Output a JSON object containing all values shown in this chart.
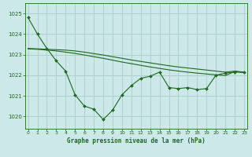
{
  "title": "Graphe pression niveau de la mer (hPa)",
  "bg_color": "#cce8e8",
  "grid_color": "#aacccc",
  "line_color": "#1a6b1a",
  "x_ticks": [
    0,
    1,
    2,
    3,
    4,
    5,
    6,
    7,
    8,
    9,
    10,
    11,
    12,
    13,
    14,
    15,
    16,
    17,
    18,
    19,
    20,
    21,
    22,
    23
  ],
  "y_ticks": [
    1020,
    1021,
    1022,
    1023,
    1024,
    1025
  ],
  "ylim": [
    1019.4,
    1025.5
  ],
  "xlim": [
    -0.3,
    23.3
  ],
  "series1": [
    1024.8,
    1024.0,
    1023.3,
    1022.7,
    1022.2,
    1021.05,
    1020.5,
    1020.35,
    1019.85,
    1020.3,
    1021.05,
    1021.5,
    1021.85,
    1021.95,
    1022.15,
    1021.4,
    1021.35,
    1021.4,
    1021.3,
    1021.35,
    1022.0,
    1022.1,
    1022.15,
    1022.15
  ],
  "series2": [
    1023.3,
    1023.28,
    1023.26,
    1023.24,
    1023.22,
    1023.18,
    1023.12,
    1023.05,
    1022.98,
    1022.9,
    1022.82,
    1022.74,
    1022.67,
    1022.6,
    1022.53,
    1022.46,
    1022.4,
    1022.35,
    1022.3,
    1022.25,
    1022.2,
    1022.15,
    1022.2,
    1022.15
  ],
  "series3": [
    1023.28,
    1023.26,
    1023.22,
    1023.18,
    1023.12,
    1023.06,
    1022.98,
    1022.9,
    1022.82,
    1022.73,
    1022.64,
    1022.56,
    1022.48,
    1022.4,
    1022.33,
    1022.26,
    1022.2,
    1022.15,
    1022.1,
    1022.06,
    1022.02,
    1021.98,
    1022.18,
    1022.12
  ]
}
